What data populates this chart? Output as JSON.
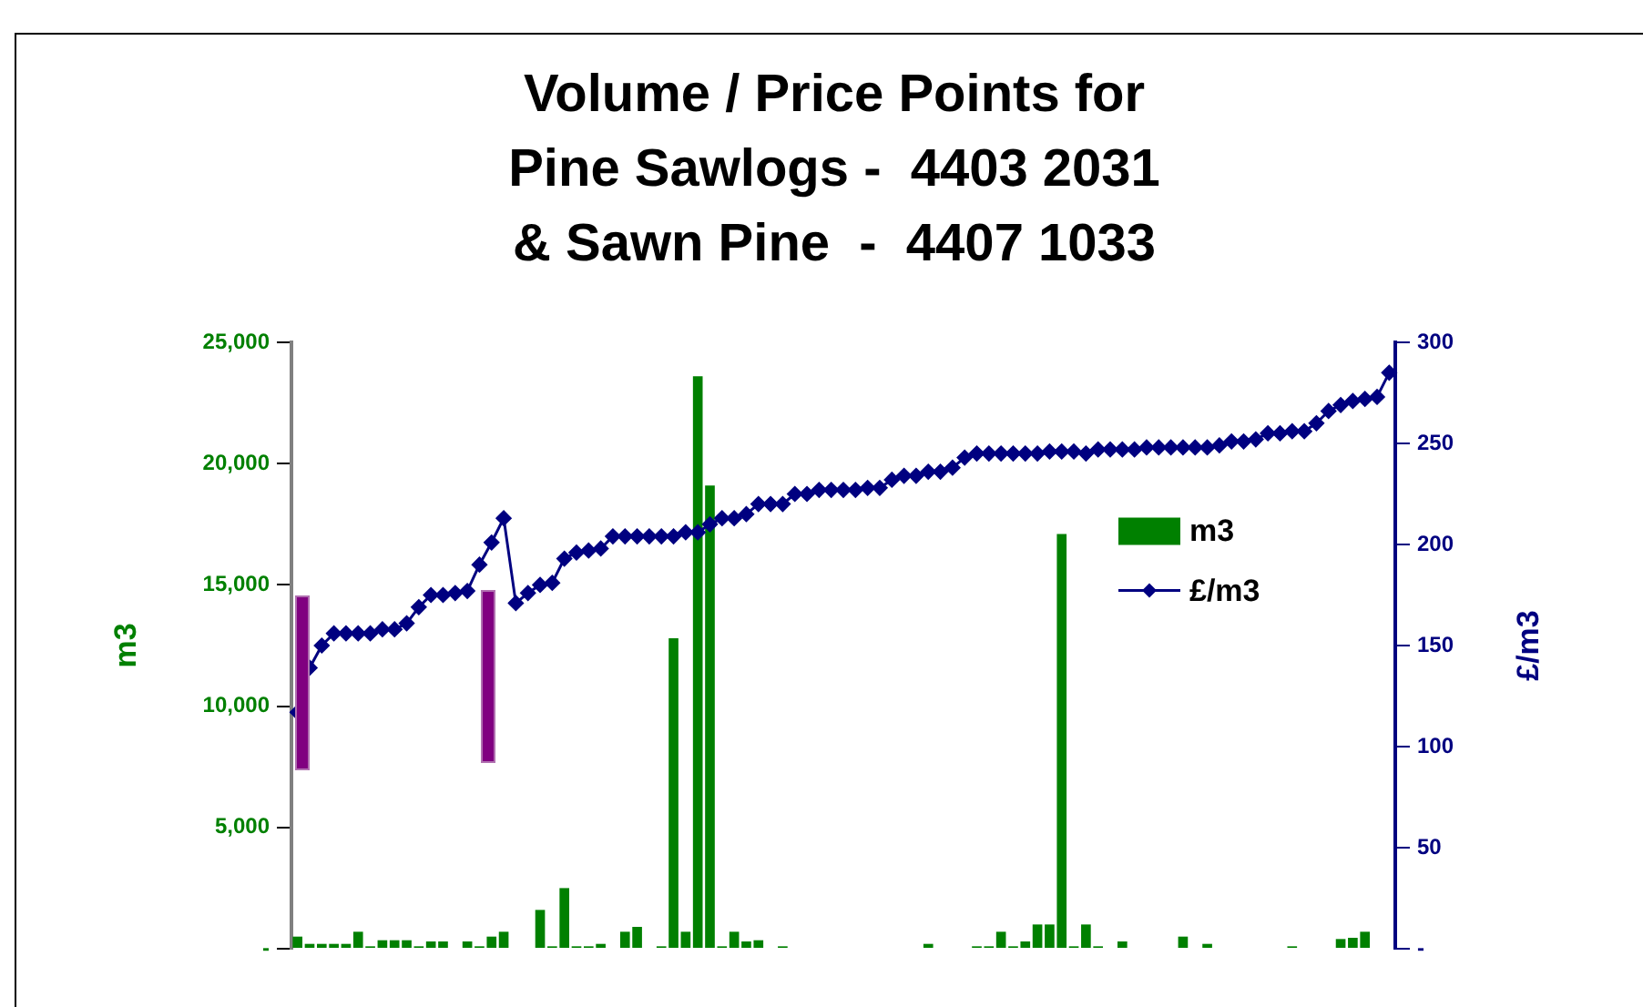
{
  "chart_data": {
    "type": "bar",
    "title": "Volume / Price Points for\nPine Sawlogs -  4403 2031\n& Sawn Pine  -  4407 1033",
    "ylabel": "m3",
    "y2label": "£/m3",
    "categories": [
      null,
      null,
      null,
      null,
      null,
      null,
      null,
      null,
      null,
      null,
      null,
      null,
      null,
      null,
      null,
      null,
      null,
      null,
      null,
      null,
      null,
      null,
      null,
      null,
      null,
      null,
      null,
      null,
      null,
      null,
      null,
      null,
      null,
      null,
      null,
      null,
      null,
      null,
      null,
      null,
      null,
      null,
      null,
      null,
      null,
      null,
      null,
      null,
      null,
      null,
      null,
      null,
      null,
      null,
      null,
      null,
      null,
      null,
      null,
      null,
      null,
      null,
      null,
      null,
      null,
      null,
      null,
      null,
      null,
      null,
      null,
      null,
      null,
      null,
      null,
      null,
      null,
      null,
      null,
      null,
      null,
      null,
      null,
      null,
      null,
      null,
      null,
      null,
      null,
      null,
      null
    ],
    "series": [
      {
        "name": "m3",
        "color": "#008000",
        "values": [
          500,
          200,
          200,
          200,
          200,
          700,
          100,
          350,
          350,
          350,
          100,
          300,
          300,
          null,
          300,
          100,
          500,
          700,
          null,
          null,
          1600,
          100,
          2500,
          100,
          100,
          200,
          null,
          700,
          900,
          null,
          100,
          12800,
          700,
          23600,
          19100,
          100,
          700,
          300,
          350,
          null,
          100,
          null,
          null,
          null,
          null,
          null,
          null,
          null,
          null,
          null,
          null,
          null,
          200,
          null,
          null,
          null,
          100,
          100,
          700,
          100,
          300,
          1000,
          1000,
          17100,
          100,
          1000,
          100,
          null,
          300,
          null,
          null,
          null,
          null,
          500,
          null,
          200,
          null,
          null,
          null,
          null,
          null,
          null,
          100,
          null,
          null,
          null,
          400,
          450,
          700,
          null,
          null
        ]
      },
      {
        "name": "£/m3",
        "type": "line",
        "axis": "y2",
        "color": "#000080",
        "marker": "diamond",
        "line_style": "solid",
        "values": [
          117,
          139,
          150,
          156,
          156,
          156,
          156,
          158,
          158,
          161,
          169,
          175,
          175,
          176,
          177,
          190,
          201,
          213,
          171,
          176,
          180,
          181,
          193,
          196,
          197,
          198,
          204,
          204,
          204,
          204,
          204,
          204,
          206,
          206,
          210,
          213,
          213,
          215,
          220,
          220,
          220,
          225,
          225,
          227,
          227,
          227,
          227,
          228,
          228,
          232,
          234,
          234,
          236,
          236,
          238,
          243,
          245,
          245,
          245,
          245,
          245,
          245,
          246,
          246,
          246,
          245,
          247,
          247,
          247,
          247,
          248,
          248,
          248,
          248,
          248,
          248,
          249,
          251,
          251,
          252,
          255,
          255,
          256,
          256,
          260,
          266,
          269,
          271,
          272,
          273,
          285
        ]
      }
    ],
    "ylim": [
      0,
      25000
    ],
    "yticks": [
      {
        "value": 0,
        "label": "-"
      },
      {
        "value": 5000,
        "label": "5,000"
      },
      {
        "value": 10000,
        "label": "10,000"
      },
      {
        "value": 15000,
        "label": "15,000"
      },
      {
        "value": 20000,
        "label": "20,000"
      },
      {
        "value": 25000,
        "label": "25,000"
      }
    ],
    "y2lim": [
      0,
      300
    ],
    "y2ticks": [
      {
        "value": 0,
        "label": "-"
      },
      50,
      100,
      150,
      200,
      250,
      300
    ],
    "tick_labels": "y",
    "grid": false,
    "legend": "right"
  }
}
